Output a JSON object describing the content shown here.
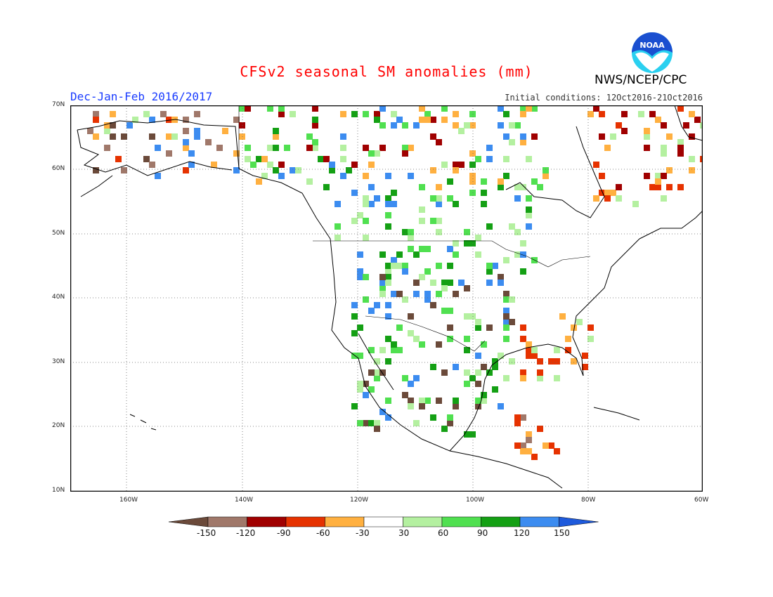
{
  "header": {
    "title": "CFSv2 seasonal SM anomalies (mm)",
    "season": "Dec-Jan-Feb 2016/2017",
    "initial_conditions": "Initial conditions: 12Oct2016-21Oct2016",
    "agency": "NWS/NCEP/CPC",
    "logo_text": "NOAA"
  },
  "map": {
    "lat_labels": [
      "70N",
      "60N",
      "50N",
      "40N",
      "30N",
      "20N",
      "10N"
    ],
    "lon_labels": [
      "160W",
      "140W",
      "120W",
      "100W",
      "80W",
      "60W"
    ]
  },
  "colorbar": {
    "labels": [
      "-150",
      "-120",
      "-90",
      "-60",
      "-30",
      "30",
      "60",
      "90",
      "120",
      "150"
    ],
    "colors": [
      "#6b4a3a",
      "#a0786a",
      "#a00000",
      "#e63200",
      "#ffb040",
      "#ffffff",
      "#b4f0a0",
      "#50e050",
      "#14a014",
      "#3c8cf0",
      "#1e5adc"
    ]
  },
  "colors": {
    "title": "#ff0000",
    "season": "#1a3cff",
    "logo_blue": "#1a4fd0",
    "logo_cyan": "#2ad0f0"
  }
}
